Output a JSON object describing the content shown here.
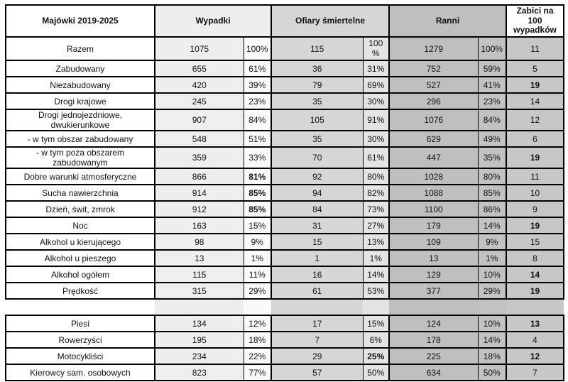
{
  "colors": {
    "border": "#000000",
    "text": "#111111",
    "col_wypadki": "#eeeeee",
    "col_wypadki_pct": "#fafafa",
    "col_ofiary": "#d6d6d6",
    "col_ofiary_pct": "#e4e4e4",
    "col_ranni": "#bfbfbf",
    "col_ranni_pct": "#c2c2c2",
    "col_zabici": "#c7c7c7",
    "header_label_bg": "#ffffff",
    "header_zabici_bg": "#ffffff"
  },
  "header": {
    "majowki": "Majówki 2019-2025",
    "wypadki": "Wypadki",
    "ofiary": "Ofiary śmiertelne",
    "ranni": "Ranni",
    "zabici": "Zabici na 100 wypadków"
  },
  "chart_data": {
    "type": "table",
    "title": "Majówki 2019-2025",
    "column_groups": [
      "Majówki 2019-2025",
      "Wypadki",
      "Ofiary śmiertelne",
      "Ranni",
      "Zabici na 100 wypadków"
    ],
    "columns": [
      "label",
      "wypadki",
      "wypadki_pct",
      "ofiary",
      "ofiary_pct",
      "ranni",
      "ranni_pct",
      "zabici"
    ],
    "rows": [
      {
        "label": "Razem",
        "wypadki": "1075",
        "wypadki_pct": "100%",
        "ofiary": "115",
        "ofiary_pct": "100 %",
        "ranni": "1279",
        "ranni_pct": "100%",
        "zabici": "11",
        "bold": [],
        "razem": true
      },
      {
        "label": "Zabudowany",
        "wypadki": "655",
        "wypadki_pct": "61%",
        "ofiary": "36",
        "ofiary_pct": "31%",
        "ranni": "752",
        "ranni_pct": "59%",
        "zabici": "5",
        "bold": []
      },
      {
        "label": "Niezabudowany",
        "wypadki": "420",
        "wypadki_pct": "39%",
        "ofiary": "79",
        "ofiary_pct": "69%",
        "ranni": "527",
        "ranni_pct": "41%",
        "zabici": "19",
        "bold": [
          "zabici"
        ]
      },
      {
        "label": "Drogi krajowe",
        "wypadki": "245",
        "wypadki_pct": "23%",
        "ofiary": "35",
        "ofiary_pct": "30%",
        "ranni": "296",
        "ranni_pct": "23%",
        "zabici": "14",
        "bold": []
      },
      {
        "label": "Drogi jednojezdniowe, dwukierunkowe",
        "wypadki": "907",
        "wypadki_pct": "84%",
        "ofiary": "105",
        "ofiary_pct": "91%",
        "ranni": "1076",
        "ranni_pct": "84%",
        "zabici": "12",
        "bold": []
      },
      {
        "label": "- w tym obszar zabudowany",
        "wypadki": "548",
        "wypadki_pct": "51%",
        "ofiary": "35",
        "ofiary_pct": "30%",
        "ranni": "629",
        "ranni_pct": "49%",
        "zabici": "6",
        "bold": []
      },
      {
        "label": "- w tym poza obszarem zabudowanym",
        "wypadki": "359",
        "wypadki_pct": "33%",
        "ofiary": "70",
        "ofiary_pct": "61%",
        "ranni": "447",
        "ranni_pct": "35%",
        "zabici": "19",
        "bold": [
          "zabici"
        ]
      },
      {
        "label": "Dobre warunki atmosferyczne",
        "wypadki": "866",
        "wypadki_pct": "81%",
        "ofiary": "92",
        "ofiary_pct": "80%",
        "ranni": "1028",
        "ranni_pct": "80%",
        "zabici": "11",
        "bold": [
          "wypadki_pct"
        ]
      },
      {
        "label": "Sucha nawierzchnia",
        "wypadki": "914",
        "wypadki_pct": "85%",
        "ofiary": "94",
        "ofiary_pct": "82%",
        "ranni": "1088",
        "ranni_pct": "85%",
        "zabici": "10",
        "bold": [
          "wypadki_pct"
        ]
      },
      {
        "label": "Dzień, świt, zmrok",
        "wypadki": "912",
        "wypadki_pct": "85%",
        "ofiary": "84",
        "ofiary_pct": "73%",
        "ranni": "1100",
        "ranni_pct": "86%",
        "zabici": "9",
        "bold": [
          "wypadki_pct"
        ]
      },
      {
        "label": "Noc",
        "wypadki": "163",
        "wypadki_pct": "15%",
        "ofiary": "31",
        "ofiary_pct": "27%",
        "ranni": "179",
        "ranni_pct": "14%",
        "zabici": "19",
        "bold": [
          "zabici"
        ]
      },
      {
        "label": "Alkohol u kierującego",
        "wypadki": "98",
        "wypadki_pct": "9%",
        "ofiary": "15",
        "ofiary_pct": "13%",
        "ranni": "109",
        "ranni_pct": "9%",
        "zabici": "15",
        "bold": []
      },
      {
        "label": "Alkohol u pieszego",
        "wypadki": "13",
        "wypadki_pct": "1%",
        "ofiary": "1",
        "ofiary_pct": "1%",
        "ranni": "13",
        "ranni_pct": "1%",
        "zabici": "8",
        "bold": []
      },
      {
        "label": "Alkohol ogółem",
        "wypadki": "115",
        "wypadki_pct": "11%",
        "ofiary": "16",
        "ofiary_pct": "14%",
        "ranni": "129",
        "ranni_pct": "10%",
        "zabici": "14",
        "bold": [
          "zabici"
        ]
      },
      {
        "label": "Prędkość",
        "wypadki": "315",
        "wypadki_pct": "29%",
        "ofiary": "61",
        "ofiary_pct": "53%",
        "ranni": "377",
        "ranni_pct": "29%",
        "zabici": "19",
        "bold": [
          "zabici"
        ]
      },
      {
        "label": "",
        "wypadki": "",
        "wypadki_pct": "",
        "ofiary": "",
        "ofiary_pct": "",
        "ranni": "",
        "ranni_pct": "",
        "zabici": "",
        "bold": [],
        "empty": true
      },
      {
        "label": "Piesi",
        "wypadki": "134",
        "wypadki_pct": "12%",
        "ofiary": "17",
        "ofiary_pct": "15%",
        "ranni": "124",
        "ranni_pct": "10%",
        "zabici": "13",
        "bold": [
          "zabici"
        ]
      },
      {
        "label": "Rowerzyści",
        "wypadki": "195",
        "wypadki_pct": "18%",
        "ofiary": "7",
        "ofiary_pct": "6%",
        "ranni": "178",
        "ranni_pct": "14%",
        "zabici": "4",
        "bold": []
      },
      {
        "label": "Motocykliści",
        "wypadki": "234",
        "wypadki_pct": "22%",
        "ofiary": "29",
        "ofiary_pct": "25%",
        "ranni": "225",
        "ranni_pct": "18%",
        "zabici": "12",
        "bold": [
          "ofiary_pct",
          "zabici"
        ]
      },
      {
        "label": "Kierowcy sam. osobowych",
        "wypadki": "823",
        "wypadki_pct": "77%",
        "ofiary": "57",
        "ofiary_pct": "50%",
        "ranni": "634",
        "ranni_pct": "50%",
        "zabici": "7",
        "bold": []
      }
    ]
  }
}
